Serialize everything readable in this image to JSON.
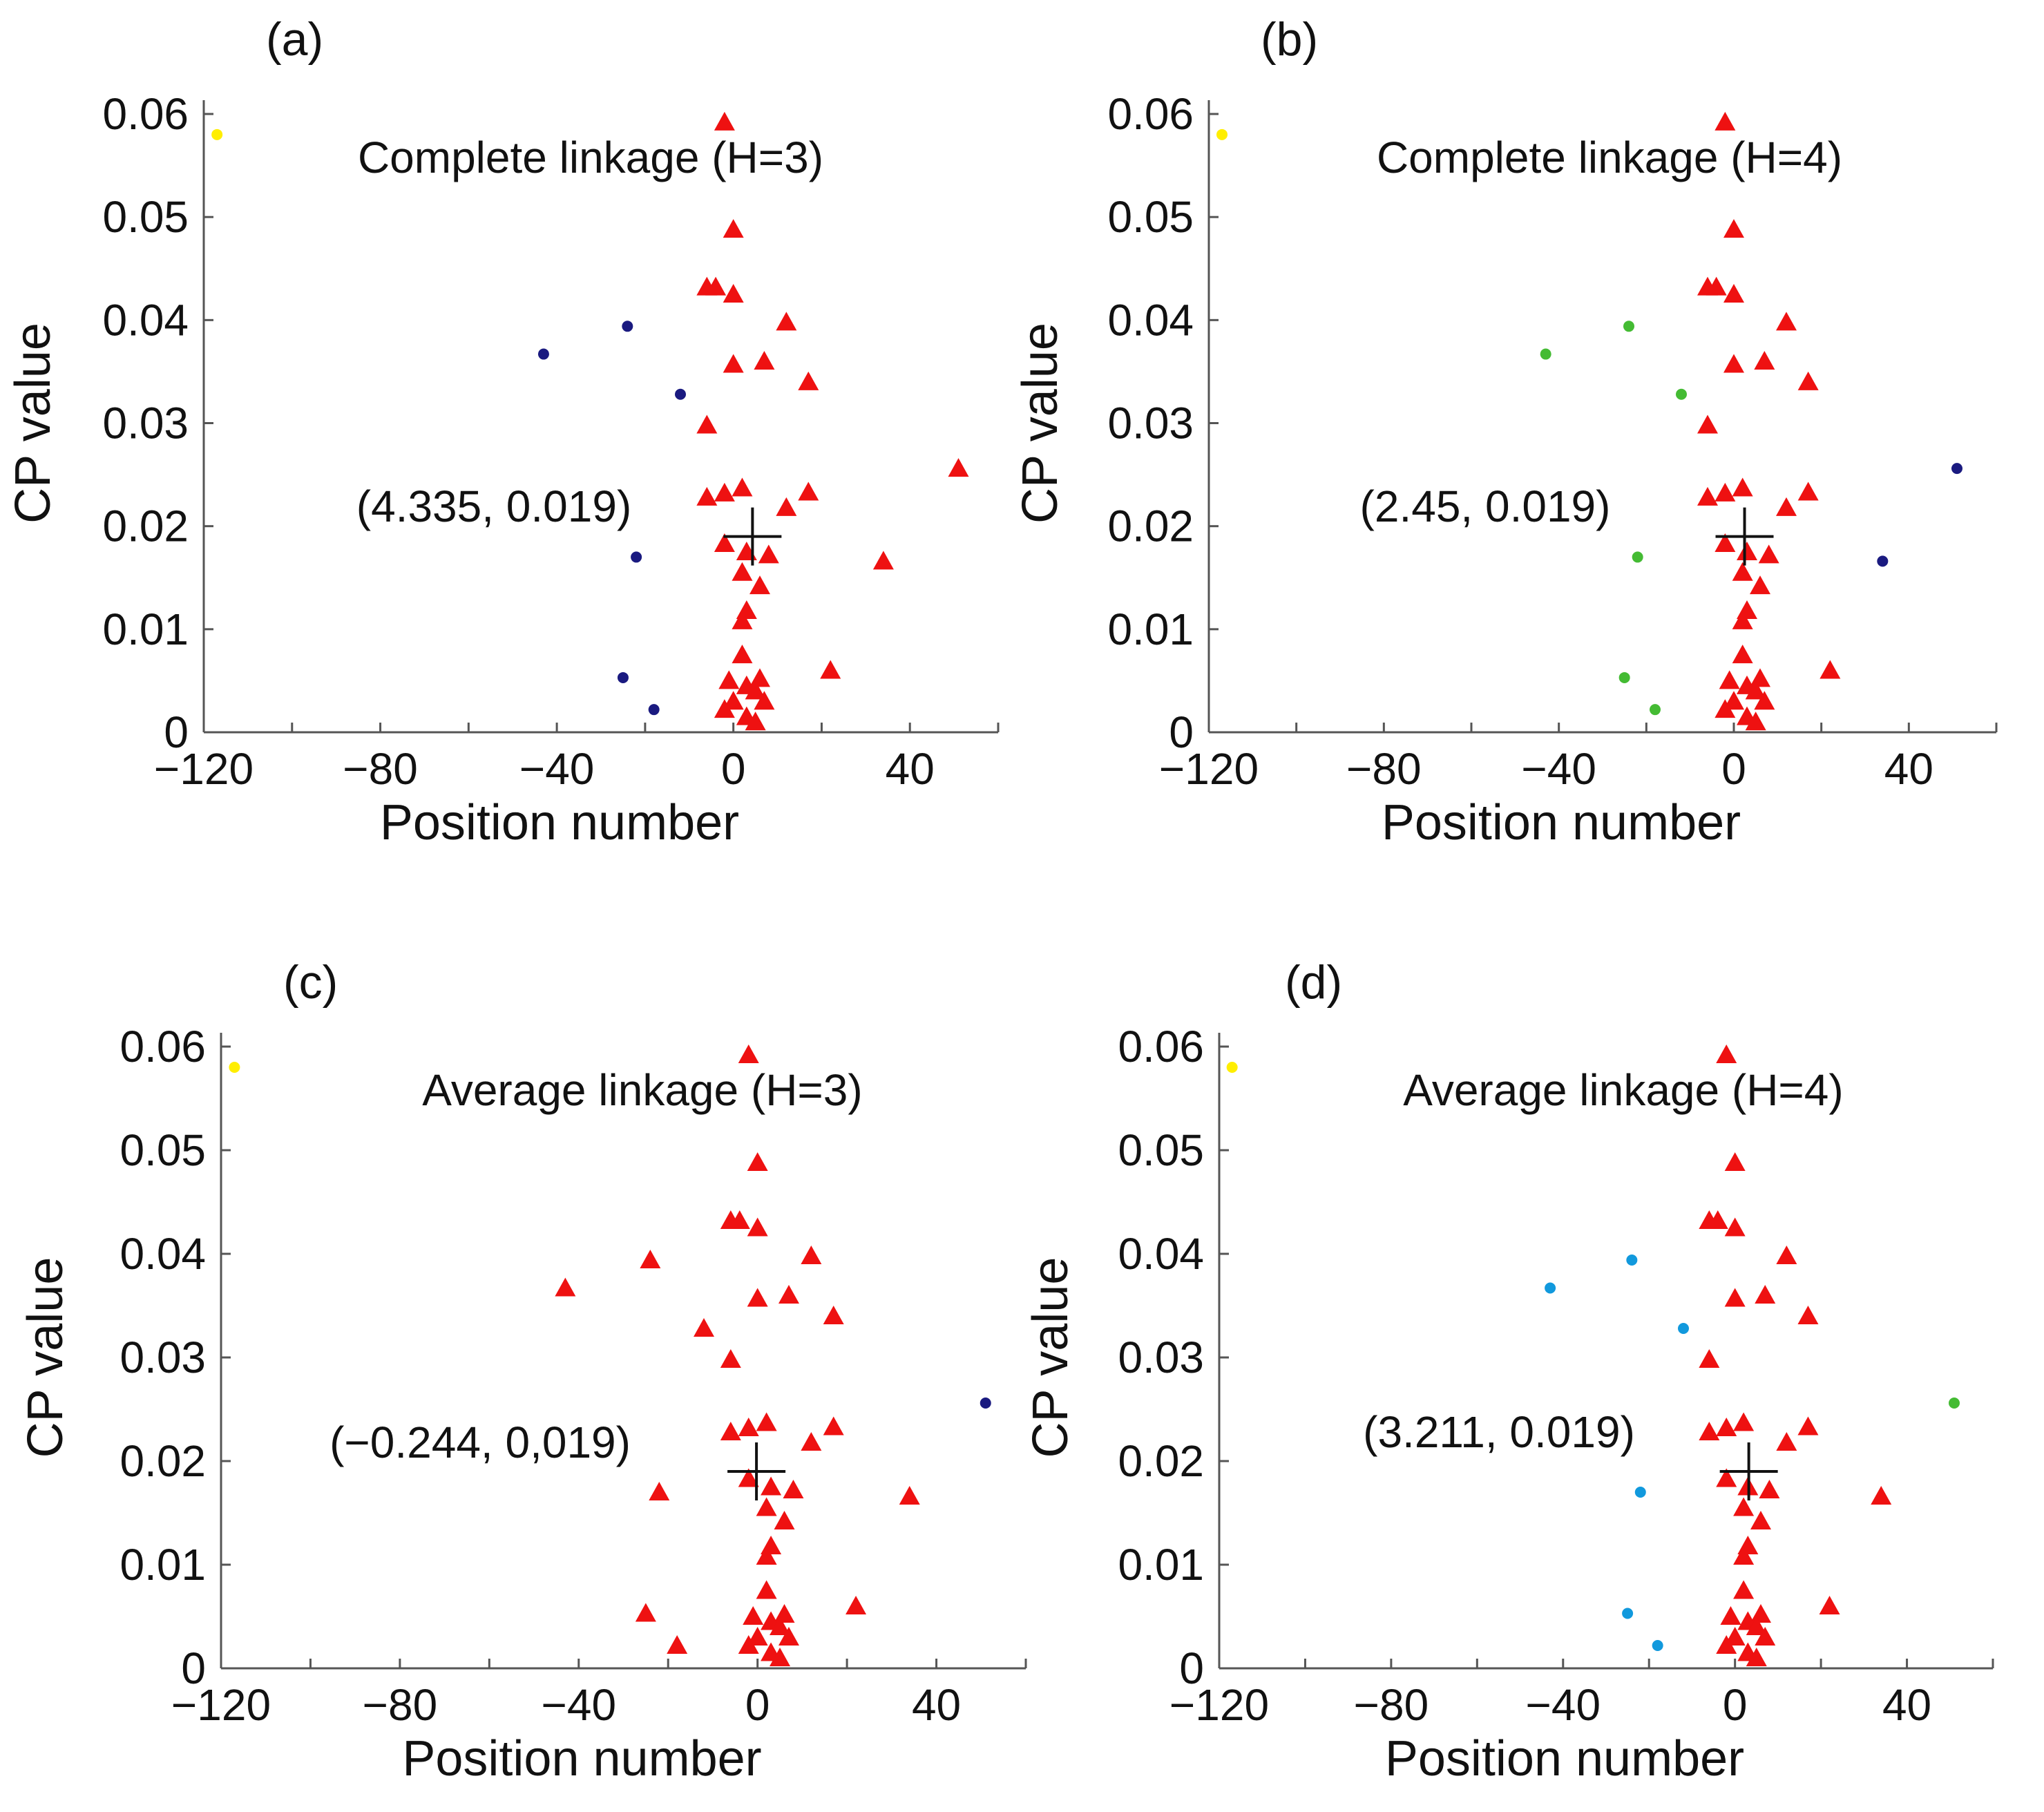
{
  "chart_data": [
    {
      "type": "scatter",
      "panel": "(a)",
      "title": "Complete linkage (H=3)",
      "xlabel": "Position number",
      "ylabel": "CP value",
      "xlim": [
        -120,
        60
      ],
      "ylim": [
        0,
        0.06
      ],
      "xticks": [
        "−120",
        "−80",
        "−40",
        "0",
        "40"
      ],
      "yticks": [
        "0",
        "0.01",
        "0.02",
        "0.03",
        "0.04",
        "0.05",
        "0.06"
      ],
      "grid": false,
      "centroid": {
        "label": "(4.335, 0.019)",
        "x": 4.335,
        "y": 0.019
      },
      "clusters": [
        {
          "color": "#ffee00",
          "marker": "dot",
          "x": [
            -117
          ],
          "y": [
            0.058
          ]
        },
        {
          "color": "#1a1a80",
          "marker": "dot",
          "x": [
            -43,
            -24,
            -12,
            -22,
            -25,
            -18
          ],
          "y": [
            0.0367,
            0.0394,
            0.0328,
            0.017,
            0.0053,
            0.0022
          ]
        },
        {
          "color": "#ee1111",
          "marker": "triangle",
          "x": [
            -2,
            0,
            -6,
            -4,
            0,
            12,
            0,
            7,
            17,
            -6,
            51,
            -6,
            -2,
            2,
            12,
            17,
            -2,
            3,
            8,
            2,
            34,
            6,
            3,
            2,
            22,
            2,
            -1,
            6,
            3,
            5,
            7,
            0,
            -2,
            3,
            5
          ],
          "y": [
            0.0592,
            0.0488,
            0.0432,
            0.0432,
            0.0425,
            0.0398,
            0.0357,
            0.036,
            0.034,
            0.0298,
            0.0256,
            0.0228,
            0.0232,
            0.0237,
            0.0218,
            0.0233,
            0.0183,
            0.0175,
            0.0172,
            0.0155,
            0.0166,
            0.0142,
            0.0118,
            0.0108,
            0.006,
            0.0075,
            0.005,
            0.0052,
            0.0045,
            0.004,
            0.003,
            0.003,
            0.0022,
            0.0015,
            0.001
          ]
        }
      ]
    },
    {
      "type": "scatter",
      "panel": "(b)",
      "title": "Complete linkage (H=4)",
      "xlabel": "Position number",
      "ylabel": "CP value",
      "xlim": [
        -120,
        60
      ],
      "ylim": [
        0,
        0.06
      ],
      "xticks": [
        "−120",
        "−80",
        "−40",
        "0",
        "40"
      ],
      "yticks": [
        "0",
        "0.01",
        "0.02",
        "0.03",
        "0.04",
        "0.05",
        "0.06"
      ],
      "grid": false,
      "centroid": {
        "label": "(2.45, 0.019)",
        "x": 2.45,
        "y": 0.019
      },
      "clusters": [
        {
          "color": "#ffee00",
          "marker": "dot",
          "x": [
            -117
          ],
          "y": [
            0.058
          ]
        },
        {
          "color": "#44bb33",
          "marker": "dot",
          "x": [
            -43,
            -24,
            -12,
            -22,
            -25,
            -18
          ],
          "y": [
            0.0367,
            0.0394,
            0.0328,
            0.017,
            0.0053,
            0.0022
          ]
        },
        {
          "color": "#1a1a80",
          "marker": "dot",
          "x": [
            51,
            34
          ],
          "y": [
            0.0256,
            0.0166
          ]
        },
        {
          "color": "#ee1111",
          "marker": "triangle",
          "x": [
            -2,
            0,
            -6,
            -4,
            0,
            12,
            0,
            7,
            17,
            -6,
            -6,
            -2,
            2,
            12,
            17,
            -2,
            3,
            8,
            2,
            6,
            3,
            2,
            22,
            2,
            -1,
            6,
            3,
            5,
            7,
            0,
            -2,
            3,
            5
          ],
          "y": [
            0.0592,
            0.0488,
            0.0432,
            0.0432,
            0.0425,
            0.0398,
            0.0357,
            0.036,
            0.034,
            0.0298,
            0.0228,
            0.0232,
            0.0237,
            0.0218,
            0.0233,
            0.0183,
            0.0175,
            0.0172,
            0.0155,
            0.0142,
            0.0118,
            0.0108,
            0.006,
            0.0075,
            0.005,
            0.0052,
            0.0045,
            0.004,
            0.003,
            0.003,
            0.0022,
            0.0015,
            0.001
          ]
        }
      ]
    },
    {
      "type": "scatter",
      "panel": "(c)",
      "title": "Average linkage (H=3)",
      "xlabel": "Position number",
      "ylabel": "CP value",
      "xlim": [
        -120,
        60
      ],
      "ylim": [
        0,
        0.06
      ],
      "xticks": [
        "−120",
        "−80",
        "−40",
        "0",
        "40"
      ],
      "yticks": [
        "0",
        "0.01",
        "0.02",
        "0.03",
        "0.04",
        "0.05",
        "0.06"
      ],
      "grid": false,
      "centroid": {
        "label": "(−0.244, 0,019)",
        "x": -0.244,
        "y": 0.019
      },
      "clusters": [
        {
          "color": "#ffee00",
          "marker": "dot",
          "x": [
            -117
          ],
          "y": [
            0.058
          ]
        },
        {
          "color": "#1a1a80",
          "marker": "dot",
          "x": [
            51
          ],
          "y": [
            0.0256
          ]
        },
        {
          "color": "#ee1111",
          "marker": "triangle",
          "x": [
            -43,
            -24,
            -12,
            -22,
            -25,
            -18,
            -2,
            0,
            -6,
            -4,
            0,
            12,
            0,
            7,
            17,
            -6,
            -6,
            -2,
            2,
            12,
            17,
            -2,
            3,
            8,
            2,
            34,
            6,
            3,
            2,
            22,
            2,
            -1,
            6,
            3,
            5,
            7,
            0,
            -2,
            3,
            5
          ],
          "y": [
            0.0367,
            0.0394,
            0.0328,
            0.017,
            0.0053,
            0.0022,
            0.0592,
            0.0488,
            0.0432,
            0.0432,
            0.0425,
            0.0398,
            0.0357,
            0.036,
            0.034,
            0.0298,
            0.0228,
            0.0232,
            0.0237,
            0.0218,
            0.0233,
            0.0183,
            0.0175,
            0.0172,
            0.0155,
            0.0166,
            0.0142,
            0.0118,
            0.0108,
            0.006,
            0.0075,
            0.005,
            0.0052,
            0.0045,
            0.004,
            0.003,
            0.003,
            0.0022,
            0.0015,
            0.001
          ]
        }
      ]
    },
    {
      "type": "scatter",
      "panel": "(d)",
      "title": "Average linkage (H=4)",
      "xlabel": "Position number",
      "ylabel": "CP value",
      "xlim": [
        -120,
        60
      ],
      "ylim": [
        0,
        0.06
      ],
      "xticks": [
        "−120",
        "−80",
        "−40",
        "0",
        "40"
      ],
      "yticks": [
        "0",
        "0.01",
        "0.02",
        "0.03",
        "0.04",
        "0.05",
        "0.06"
      ],
      "grid": false,
      "centroid": {
        "label": "(3.211, 0.019)",
        "x": 3.211,
        "y": 0.019
      },
      "clusters": [
        {
          "color": "#ffee00",
          "marker": "dot",
          "x": [
            -117
          ],
          "y": [
            0.058
          ]
        },
        {
          "color": "#1199dd",
          "marker": "dot",
          "x": [
            -43,
            -24,
            -12,
            -22,
            -25,
            -18
          ],
          "y": [
            0.0367,
            0.0394,
            0.0328,
            0.017,
            0.0053,
            0.0022
          ]
        },
        {
          "color": "#44bb33",
          "marker": "dot",
          "x": [
            51
          ],
          "y": [
            0.0256
          ]
        },
        {
          "color": "#ee1111",
          "marker": "triangle",
          "x": [
            -2,
            0,
            -6,
            -4,
            0,
            12,
            0,
            7,
            17,
            -6,
            -6,
            -2,
            2,
            12,
            17,
            -2,
            3,
            8,
            2,
            34,
            6,
            3,
            2,
            22,
            2,
            -1,
            6,
            3,
            5,
            7,
            0,
            -2,
            3,
            5
          ],
          "y": [
            0.0592,
            0.0488,
            0.0432,
            0.0432,
            0.0425,
            0.0398,
            0.0357,
            0.036,
            0.034,
            0.0298,
            0.0228,
            0.0232,
            0.0237,
            0.0218,
            0.0233,
            0.0183,
            0.0175,
            0.0172,
            0.0155,
            0.0166,
            0.0142,
            0.0118,
            0.0108,
            0.006,
            0.0075,
            0.005,
            0.0052,
            0.0045,
            0.004,
            0.003,
            0.003,
            0.0022,
            0.0015,
            0.001
          ]
        }
      ]
    }
  ]
}
